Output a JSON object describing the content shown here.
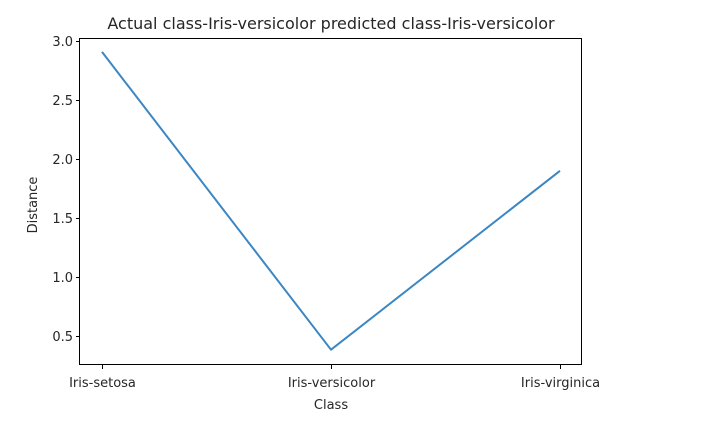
{
  "chart_data": {
    "type": "line",
    "title": "Actual class-Iris-versicolor predicted class-Iris-versicolor",
    "xlabel": "Class",
    "ylabel": "Distance",
    "categories": [
      "Iris-setosa",
      "Iris-versicolor",
      "Iris-virginica"
    ],
    "series": [
      {
        "values": [
          2.91,
          0.38,
          1.9
        ],
        "color": "#3b86c3"
      }
    ],
    "yticks": [
      0.5,
      1.0,
      1.5,
      2.0,
      2.5,
      3.0
    ],
    "ytick_labels": [
      "0.5",
      "1.0",
      "1.5",
      "2.0",
      "2.5",
      "3.0"
    ],
    "ylim": [
      0.25,
      3.02
    ],
    "grid": false,
    "legend": false
  }
}
